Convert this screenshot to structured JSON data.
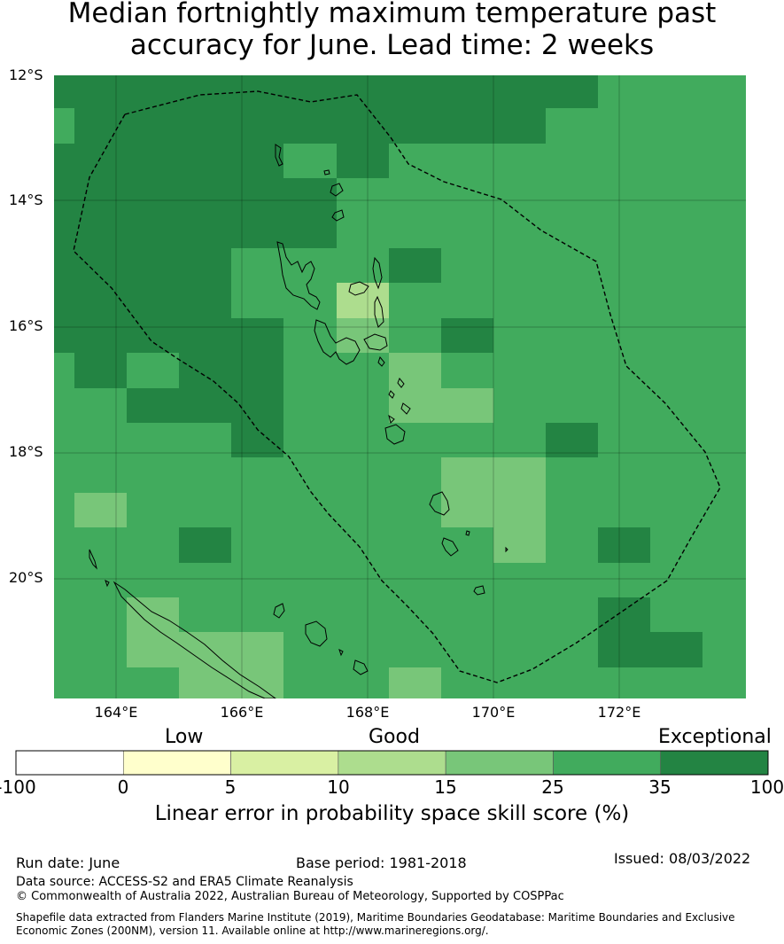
{
  "title_line1": "Median fortnightly maximum temperature past",
  "title_line2": "accuracy for June. Lead time: 2 weeks",
  "lat_labels": [
    "12°S",
    "14°S",
    "16°S",
    "18°S",
    "20°S"
  ],
  "lon_labels": [
    "164°E",
    "166°E",
    "168°E",
    "170°E",
    "172°E"
  ],
  "colorbar": {
    "categories": [
      "Low",
      "Good",
      "Exceptional"
    ],
    "ticks": [
      "-100",
      "0",
      "5",
      "10",
      "15",
      "25",
      "35",
      "100"
    ],
    "colors": [
      "#ffffff",
      "#ffffcc",
      "#d9f0a3",
      "#addd8e",
      "#78c679",
      "#41ab5d",
      "#238443"
    ],
    "label": "Linear error in probability space skill score (%)"
  },
  "footer": {
    "run_date": "Run date: June",
    "base_period": "Base period: 1981-2018",
    "issued": "Issued: 08/03/2022",
    "data_source": "Data source: ACCESS-S2 and ERA5 Climate Reanalysis",
    "copyright": "© Commonwealth of Australia 2022, Australian Bureau of Meteorology, Supported by COSPPac",
    "shapefile_line1": "Shapefile data extracted from Flanders Marine Institute (2019), Maritime Boundaries Geodatabase: Maritime Boundaries and Exclusive",
    "shapefile_line2": "Economic Zones (200NM), version 11. Available online at http://www.marineregions.org/."
  },
  "map_data": {
    "cell_categories_note": "class index into colorbar.colors per grid cell",
    "grid": [
      [
        6,
        6,
        6,
        6,
        6,
        6,
        6,
        6,
        6,
        6,
        6,
        5,
        5,
        5,
        6
      ],
      [
        5,
        6,
        6,
        6,
        6,
        6,
        6,
        6,
        6,
        6,
        5,
        5,
        5,
        5,
        6
      ],
      [
        6,
        6,
        6,
        6,
        6,
        5,
        6,
        5,
        5,
        5,
        5,
        5,
        5,
        5,
        5
      ],
      [
        6,
        6,
        6,
        6,
        6,
        6,
        5,
        5,
        5,
        5,
        5,
        5,
        5,
        5,
        5
      ],
      [
        6,
        6,
        6,
        6,
        6,
        6,
        5,
        5,
        5,
        5,
        5,
        5,
        5,
        5,
        4
      ],
      [
        6,
        6,
        6,
        6,
        5,
        5,
        5,
        6,
        5,
        5,
        5,
        5,
        5,
        5,
        5
      ],
      [
        6,
        6,
        6,
        6,
        5,
        5,
        3,
        5,
        5,
        5,
        5,
        5,
        5,
        5,
        5
      ],
      [
        6,
        6,
        6,
        6,
        6,
        5,
        4,
        5,
        6,
        5,
        5,
        5,
        5,
        5,
        5
      ],
      [
        5,
        6,
        5,
        6,
        6,
        5,
        5,
        4,
        5,
        5,
        5,
        5,
        5,
        5,
        5
      ],
      [
        5,
        5,
        6,
        6,
        6,
        5,
        5,
        4,
        4,
        5,
        5,
        5,
        5,
        5,
        5
      ],
      [
        5,
        5,
        5,
        5,
        6,
        5,
        5,
        5,
        5,
        5,
        6,
        5,
        5,
        5,
        5
      ],
      [
        5,
        5,
        5,
        5,
        5,
        5,
        5,
        5,
        4,
        4,
        5,
        5,
        5,
        5,
        5
      ],
      [
        5,
        4,
        5,
        5,
        5,
        5,
        5,
        5,
        4,
        4,
        5,
        5,
        5,
        5,
        5
      ],
      [
        5,
        5,
        5,
        6,
        5,
        5,
        5,
        5,
        5,
        4,
        5,
        6,
        5,
        5,
        5
      ],
      [
        5,
        5,
        5,
        5,
        5,
        5,
        5,
        5,
        5,
        5,
        5,
        5,
        5,
        5,
        5
      ],
      [
        5,
        5,
        4,
        5,
        5,
        5,
        5,
        5,
        5,
        5,
        5,
        6,
        5,
        5,
        5
      ],
      [
        5,
        5,
        4,
        4,
        4,
        5,
        5,
        5,
        5,
        5,
        5,
        6,
        6,
        5,
        5
      ],
      [
        5,
        5,
        5,
        4,
        4,
        5,
        5,
        4,
        5,
        5,
        5,
        5,
        5,
        5,
        5
      ]
    ]
  }
}
